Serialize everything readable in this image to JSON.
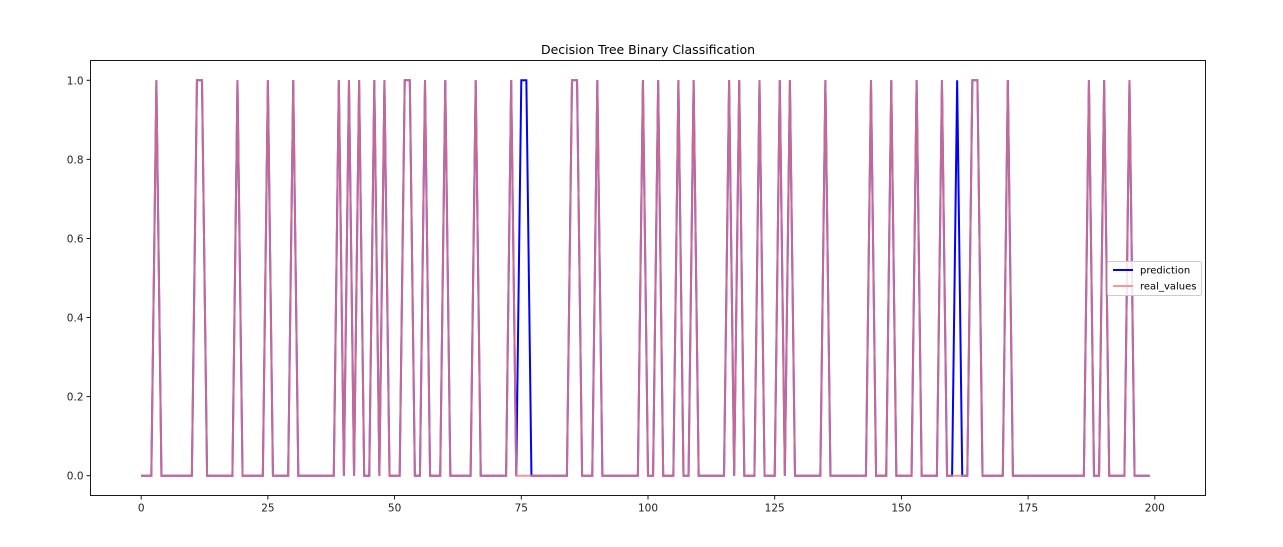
{
  "chart_data": {
    "type": "line",
    "title": "Decision Tree Binary Classification",
    "xlabel": "",
    "ylabel": "",
    "xlim": [
      -10,
      210
    ],
    "ylim": [
      -0.05,
      1.05
    ],
    "xticks": [
      0,
      25,
      50,
      75,
      100,
      125,
      150,
      175,
      200
    ],
    "xtick_labels": [
      "0",
      "25",
      "50",
      "75",
      "100",
      "125",
      "150",
      "175",
      "200"
    ],
    "yticks": [
      0.0,
      0.2,
      0.4,
      0.6,
      0.8,
      1.0
    ],
    "ytick_labels": [
      "0.0",
      "0.2",
      "0.4",
      "0.6",
      "0.8",
      "1.0"
    ],
    "grid": false,
    "legend_position": "center-right",
    "series": [
      {
        "name": "prediction",
        "color": "#0000ff",
        "n_points": 200,
        "ones_at": [
          3,
          11,
          12,
          19,
          25,
          30,
          39,
          41,
          43,
          46,
          48,
          52,
          53,
          56,
          60,
          66,
          73,
          75,
          76,
          85,
          86,
          90,
          99,
          102,
          106,
          109,
          116,
          118,
          122,
          126,
          128,
          135,
          144,
          148,
          153,
          158,
          161,
          164,
          165,
          171,
          187,
          190,
          195
        ]
      },
      {
        "name": "real_values",
        "color": "#f08080",
        "n_points": 200,
        "ones_at": [
          3,
          11,
          12,
          19,
          25,
          30,
          39,
          41,
          43,
          46,
          48,
          52,
          53,
          56,
          60,
          66,
          73,
          85,
          86,
          90,
          99,
          102,
          106,
          109,
          116,
          118,
          122,
          126,
          128,
          135,
          144,
          148,
          153,
          158,
          164,
          165,
          171,
          187,
          190,
          195
        ]
      }
    ]
  }
}
